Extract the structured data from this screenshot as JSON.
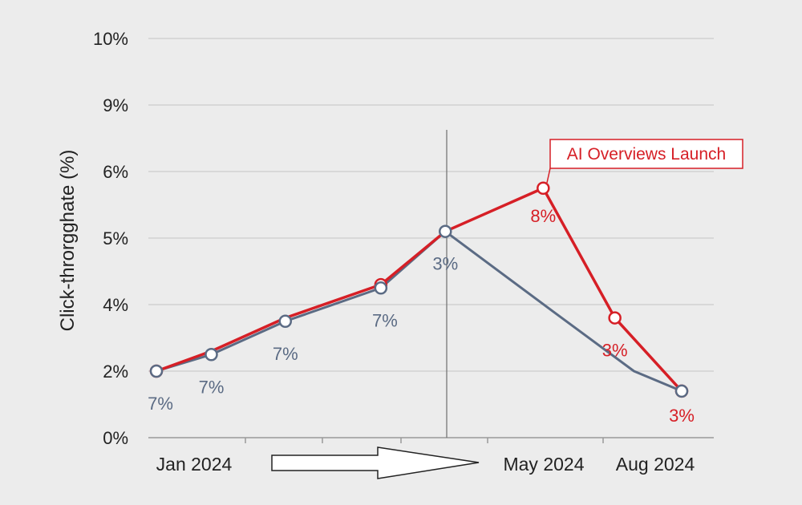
{
  "chart_data": {
    "type": "line",
    "ylabel": "Click-throrgghate  (%)",
    "xlabel": "",
    "y_ticks": [
      "0%",
      "2%",
      "4%",
      "5%",
      "6%",
      "9%",
      "10%"
    ],
    "x_tick_labels": [
      "Jan 2024",
      "May 2024",
      "Aug 2024"
    ],
    "ylim": [
      0,
      6
    ],
    "grid": true,
    "legend": "none",
    "series": [
      {
        "color": "#d61f26",
        "x": [
          0,
          1.15,
          2.7,
          4.7,
          6.05,
          8.1,
          9.6,
          11.0
        ],
        "values": [
          1.0,
          1.3,
          1.8,
          2.3,
          3.1,
          3.75,
          1.8,
          0.7
        ],
        "markers": [
          0,
          3,
          5,
          6,
          7
        ],
        "labels": [
          {
            "point": 5,
            "text": "8%"
          },
          {
            "point": 6,
            "text": "3%"
          },
          {
            "point": 7,
            "text": "3%"
          }
        ]
      },
      {
        "color": "#5b6b84",
        "x": [
          0,
          1.15,
          2.7,
          4.7,
          6.05,
          8.3,
          10.0,
          11.0
        ],
        "values": [
          1.0,
          1.25,
          1.75,
          2.25,
          3.1,
          1.9,
          1.0,
          0.7
        ],
        "markers": [
          0,
          1,
          2,
          3,
          4,
          7
        ],
        "labels": [
          {
            "point": 0,
            "text": "7%"
          },
          {
            "point": 1,
            "text": "7%"
          },
          {
            "point": 2,
            "text": "7%"
          },
          {
            "point": 3,
            "text": "7%"
          },
          {
            "point": 4,
            "text": "3%"
          }
        ]
      }
    ],
    "annotation": {
      "text": "AI Overviews Launch",
      "at_x": 6.05,
      "color": "#d61f26"
    },
    "colors": {
      "red": "#d61f26",
      "blue_gray": "#5b6b84",
      "grid": "#cccccc"
    }
  }
}
